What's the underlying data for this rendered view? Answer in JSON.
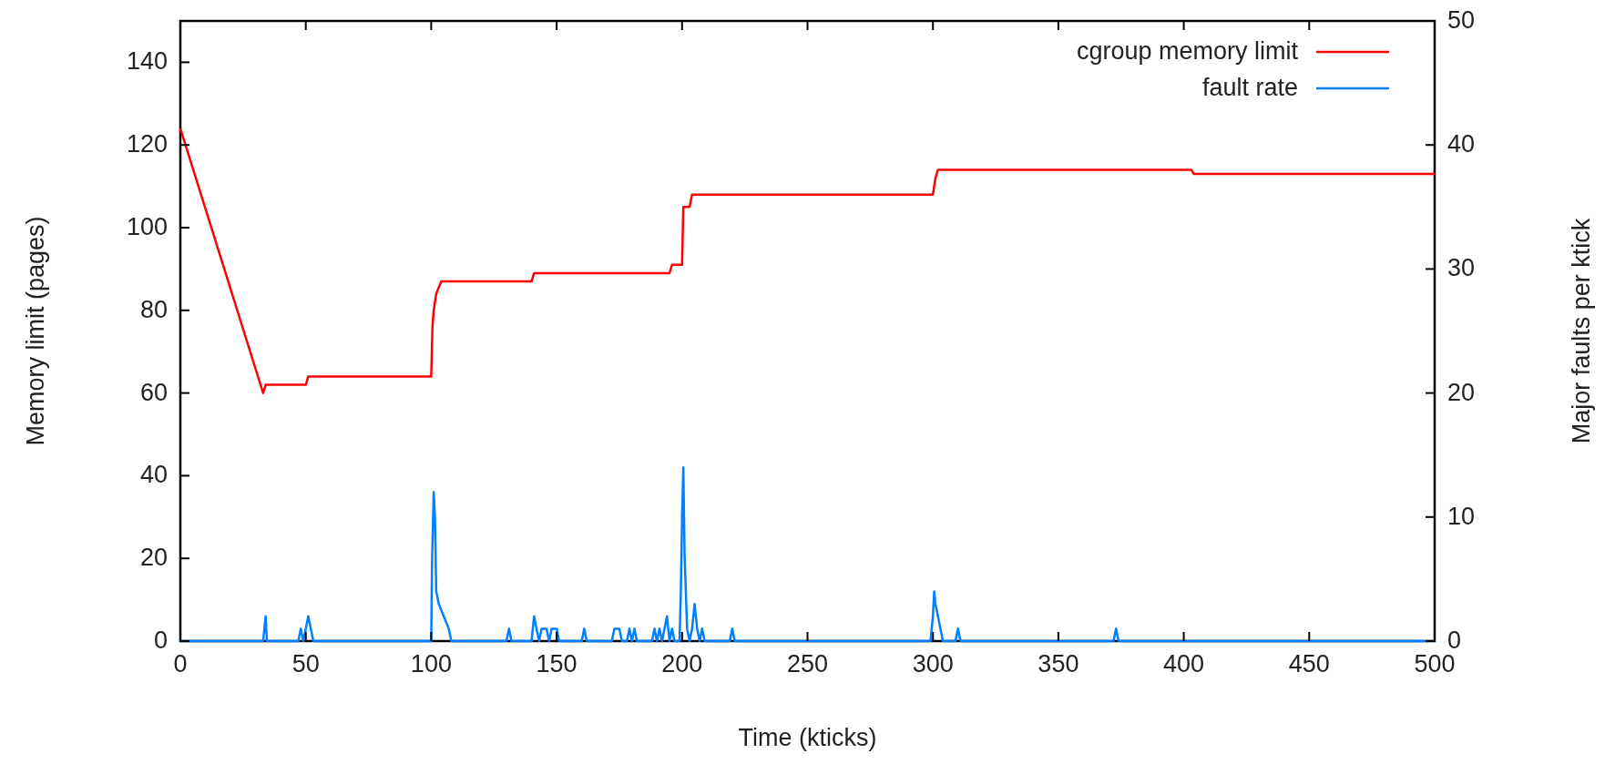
{
  "chart_data": {
    "type": "line",
    "xlabel": "Time (kticks)",
    "ylabel": "Memory limit (pages)",
    "y2label": "Major faults per ktick",
    "xlim": [
      0,
      500
    ],
    "xticks": [
      0,
      50,
      100,
      150,
      200,
      250,
      300,
      350,
      400,
      450,
      500
    ],
    "ylim": [
      0,
      150
    ],
    "yticks": [
      0,
      20,
      40,
      60,
      80,
      100,
      120,
      140
    ],
    "y2lim": [
      0,
      50
    ],
    "y2ticks": [
      0,
      10,
      20,
      30,
      40,
      50
    ],
    "legend": "top right",
    "grid": false,
    "series": [
      {
        "name": "cgroup memory limit",
        "color": "#ff0000",
        "x": [
          0,
          33,
          34,
          50,
          51,
          100,
          100.5,
          101,
          102,
          104,
          140,
          141,
          195,
          196,
          200,
          200.5,
          203,
          204,
          300,
          301,
          302,
          403,
          404,
          500
        ],
        "values": [
          124,
          60,
          62,
          62,
          64,
          64,
          76,
          80,
          84,
          87,
          87,
          89,
          89,
          91,
          91,
          105,
          105,
          108,
          108,
          112,
          114,
          114,
          113,
          113
        ]
      },
      {
        "name": "fault rate",
        "color": "#0080ff",
        "axis": "y2",
        "x": [
          0,
          33,
          33.5,
          34,
          34.5,
          47,
          48,
          49,
          50,
          51,
          52,
          53,
          100,
          100.3,
          101,
          101.5,
          102,
          103,
          105,
          107,
          108,
          130,
          131,
          132,
          140,
          141,
          142,
          143,
          144,
          146,
          147,
          148,
          150,
          151,
          160,
          161,
          162,
          172,
          173,
          175,
          176,
          178,
          179,
          180,
          181,
          182,
          188,
          189,
          190,
          191,
          192,
          193,
          194,
          195,
          196,
          197,
          199,
          199.5,
          200,
          200.5,
          201,
          201.5,
          202,
          203,
          204,
          205,
          206,
          207,
          208,
          209,
          219,
          220,
          221,
          299,
          300,
          300.5,
          301,
          302,
          303,
          304,
          309,
          310,
          311,
          372,
          373,
          374,
          500
        ],
        "values": [
          0,
          0,
          1,
          2,
          0,
          0,
          1,
          0,
          1,
          2,
          1,
          0,
          0,
          6,
          12,
          10,
          4,
          3,
          2,
          1,
          0,
          0,
          1,
          0,
          0,
          2,
          1,
          0,
          1,
          1,
          0,
          1,
          1,
          0,
          0,
          1,
          0,
          0,
          1,
          1,
          0,
          0,
          1,
          0,
          1,
          0,
          0,
          1,
          0,
          1,
          0,
          1,
          2,
          0,
          1,
          0,
          0,
          4,
          10,
          14,
          7,
          4,
          1,
          0,
          1,
          3,
          1,
          0,
          1,
          0,
          0,
          1,
          0,
          0,
          2,
          4,
          3,
          2,
          1,
          0,
          0,
          1,
          0,
          0,
          1,
          0,
          0
        ]
      }
    ]
  }
}
